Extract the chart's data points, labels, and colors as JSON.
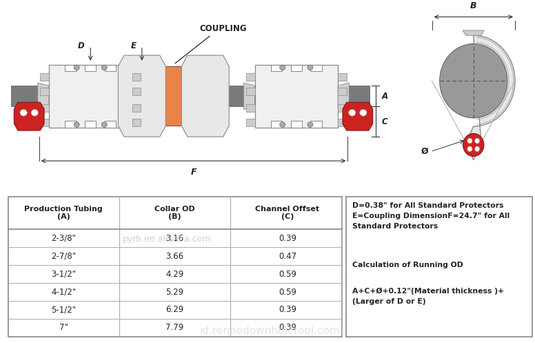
{
  "bg_color": "#ffffff",
  "table_headers": [
    "Production Tubing\n(A)",
    "Collar OD\n(B)",
    "Channel Offset\n(C)"
  ],
  "table_rows": [
    [
      "2-3/8\"",
      "3.16",
      "0.39"
    ],
    [
      "2-7/8\"",
      "3.66",
      "0.47"
    ],
    [
      "3-1/2\"",
      "4.29",
      "0.59"
    ],
    [
      "4-1/2\"",
      "5.29",
      "0.59"
    ],
    [
      "5-1/2\"",
      "6.29",
      "0.39"
    ],
    [
      "7\"",
      "7.79",
      "0.39"
    ]
  ],
  "note_line1": "D=0.38\" for All Standard Protectors",
  "note_line2": "E=Coupling DimensionF=24.7\" for All",
  "note_line3": "Standard Protectors",
  "note_calc_head": "Calculation of Running OD",
  "note_calc_line1": "A+C+Ø+0.12\"(Material thickness )+",
  "note_calc_line2": "(Larger of D or E)",
  "watermark1": "pyrh.en.alibaba.com",
  "watermark2": "id.renhedownholetool.com",
  "coupling_label": "COUPLING",
  "label_D": "D",
  "label_E": "E",
  "label_A": "A",
  "label_C": "C",
  "label_F": "F",
  "label_B": "B",
  "label_phi": "Ø",
  "gray_tube": "#7a7a7a",
  "gray_protector": "#e0e0e0",
  "gray_protector_edge": "#888888",
  "orange_coupling": "#E8834A",
  "red_ball": "#cc2222",
  "dim_color": "#333333",
  "text_color": "#222222",
  "table_line_color": "#aaaaaa",
  "table_border_color": "#888888"
}
